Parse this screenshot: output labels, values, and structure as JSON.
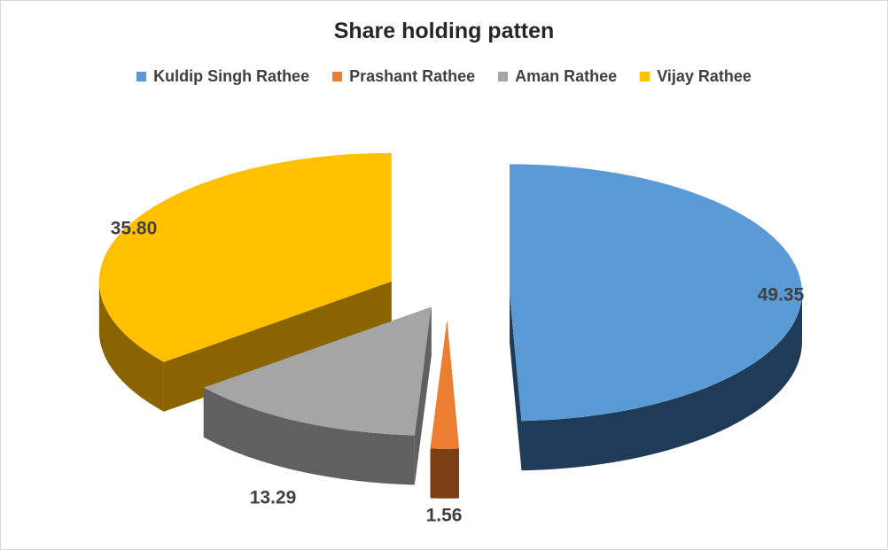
{
  "chart_data": {
    "type": "pie",
    "title": "Share holding patten",
    "legend_position": "top",
    "exploded": true,
    "three_d": true,
    "series": [
      {
        "categories": [
          "Kuldip Singh Rathee",
          "Prashant Rathee",
          "Aman Rathee",
          "Vijay Rathee"
        ],
        "values": [
          49.35,
          1.56,
          13.29,
          35.8
        ],
        "labels": [
          "49.35",
          "1.56",
          "13.29",
          "35.80"
        ]
      }
    ]
  },
  "colors": {
    "Kuldip Singh Rathee": "#5b9bd5",
    "Prashant Rathee": "#ed7d31",
    "Aman Rathee": "#a5a5a5",
    "Vijay Rathee": "#ffc000"
  },
  "colors_dark": {
    "Kuldip Singh Rathee": "#1f3b57",
    "Prashant Rathee": "#7a3d14",
    "Aman Rathee": "#606060",
    "Vijay Rathee": "#8a6400"
  }
}
